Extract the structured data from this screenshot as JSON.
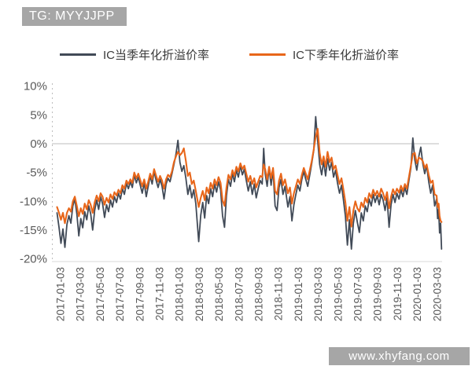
{
  "watermarks": {
    "top_left": "TG: MYYJJPP",
    "bottom_right": "www.xhyfang.com",
    "badge_bg": "#a6a6a6",
    "badge_text_color": "#ffffff"
  },
  "chart_data": {
    "type": "line",
    "title": "",
    "xlabel": "",
    "ylabel": "",
    "grid": "horizontal zero-line only",
    "legend_position": "top",
    "ylim": [
      -20,
      10
    ],
    "y_ticks": [
      "10%",
      "5%",
      "0%",
      "-5%",
      "-10%",
      "-15%",
      "-20%"
    ],
    "y_tick_values": [
      10,
      5,
      0,
      -5,
      -10,
      -15,
      -20
    ],
    "x_tick_labels": [
      "2017-01-03",
      "2017-03-03",
      "2017-05-03",
      "2017-07-03",
      "2017-09-03",
      "2017-11-03",
      "2018-01-03",
      "2018-03-03",
      "2018-05-03",
      "2018-07-03",
      "2018-09-03",
      "2018-11-03",
      "2019-01-03",
      "2019-03-03",
      "2019-05-03",
      "2019-07-03",
      "2019-09-03",
      "2019-11-03",
      "2020-01-03",
      "2020-03-03"
    ],
    "x_tick_months": [
      0,
      2,
      4,
      6,
      8,
      10,
      12,
      14,
      16,
      18,
      20,
      22,
      24,
      26,
      28,
      30,
      32,
      34,
      36,
      38
    ],
    "x_unit": "months since 2017-01-03 (daily series shown)",
    "gridline_color": "#c9c9c9",
    "axis_color": "#bdbdbd",
    "tick_text_color": "#595959",
    "t": [
      -0.4,
      -0.2,
      0,
      0.2,
      0.4,
      0.6,
      0.8,
      1,
      1.2,
      1.4,
      1.6,
      1.8,
      2,
      2.2,
      2.4,
      2.6,
      2.8,
      3,
      3.2,
      3.4,
      3.6,
      3.8,
      4,
      4.2,
      4.4,
      4.6,
      4.8,
      5,
      5.2,
      5.4,
      5.6,
      5.8,
      6,
      6.2,
      6.4,
      6.6,
      6.8,
      7,
      7.2,
      7.4,
      7.6,
      7.8,
      8,
      8.2,
      8.4,
      8.6,
      8.8,
      9,
      9.2,
      9.4,
      9.6,
      9.8,
      10,
      10.2,
      10.4,
      10.6,
      10.8,
      11,
      11.2,
      11.4,
      11.6,
      11.8,
      12,
      12.2,
      12.4,
      12.6,
      12.8,
      13,
      13.2,
      13.4,
      13.6,
      13.9,
      14.1,
      14.3,
      14.5,
      14.7,
      14.9,
      15.1,
      15.3,
      15.5,
      15.7,
      15.9,
      16.1,
      16.3,
      16.5,
      16.7,
      16.9,
      17.1,
      17.3,
      17.5,
      17.7,
      17.9,
      18.1,
      18.3,
      18.5,
      18.7,
      18.9,
      19.1,
      19.3,
      19.5,
      19.7,
      19.9,
      20.1,
      20.3,
      20.45,
      20.6,
      20.8,
      21,
      21.2,
      21.4,
      21.6,
      21.8,
      22,
      22.2,
      22.4,
      22.6,
      22.9,
      23.1,
      23.3,
      23.5,
      23.7,
      23.9,
      24.1,
      24.3,
      24.5,
      24.7,
      24.9,
      25.1,
      25.3,
      25.5,
      25.7,
      25.9,
      26.1,
      26.3,
      26.5,
      26.7,
      26.9,
      27.1,
      27.3,
      27.5,
      27.7,
      27.9,
      28.1,
      28.3,
      28.5,
      28.7,
      28.9,
      29.1,
      29.3,
      29.5,
      29.7,
      29.9,
      30.1,
      30.3,
      30.5,
      30.7,
      30.9,
      31.1,
      31.3,
      31.5,
      31.7,
      31.9,
      32.1,
      32.3,
      32.5,
      32.7,
      32.9,
      33.1,
      33.3,
      33.5,
      33.7,
      33.9,
      34.1,
      34.3,
      34.5,
      34.7,
      34.9,
      35.1,
      35.3,
      35.5,
      35.7,
      35.9,
      36.1,
      36.3,
      36.5,
      36.7,
      36.9,
      37.1,
      37.3,
      37.5,
      37.7,
      37.9,
      38,
      38.1,
      38.2,
      38.3,
      38.4
    ],
    "series": [
      {
        "name": "IC当季年化折溢价率",
        "color": "#414a57",
        "values": [
          -12,
          -14.5,
          -17.3,
          -14.8,
          -18,
          -14,
          -12.5,
          -13.8,
          -10.8,
          -9.6,
          -12.2,
          -16,
          -13,
          -14.6,
          -11.8,
          -13.2,
          -10.8,
          -12.2,
          -15,
          -11.6,
          -9.8,
          -11.4,
          -9.2,
          -10.4,
          -12.8,
          -10.6,
          -11.8,
          -9.8,
          -11,
          -9.2,
          -10.2,
          -8.6,
          -9.6,
          -7.8,
          -8.8,
          -6.9,
          -7.8,
          -6.6,
          -7.6,
          -5.4,
          -6.8,
          -5.8,
          -7.2,
          -8.6,
          -6.8,
          -9.2,
          -7.4,
          -5.6,
          -7,
          -4.8,
          -6.4,
          -7.6,
          -6.2,
          -7.4,
          -9.6,
          -7,
          -6,
          -6.6,
          -5.2,
          -3.6,
          -1.8,
          0.6,
          -3.2,
          -4.8,
          -3.8,
          -6,
          -8.8,
          -7.2,
          -9.4,
          -8,
          -10.4,
          -17,
          -12.4,
          -10.2,
          -12.9,
          -9,
          -10.4,
          -7.8,
          -9.2,
          -7,
          -8.4,
          -6.6,
          -8,
          -12.5,
          -14.5,
          -9,
          -6.2,
          -7.4,
          -5.2,
          -6.6,
          -4.6,
          -5.8,
          -3.8,
          -5.4,
          -4.4,
          -6.4,
          -8.2,
          -6.6,
          -8.8,
          -7,
          -9.4,
          -7.8,
          -6.4,
          -7,
          -0.8,
          -5.2,
          -7.4,
          -4.2,
          -7.2,
          -4.6,
          -10.8,
          -11.6,
          -7.6,
          -6.2,
          -8.8,
          -7.4,
          -11,
          -9.2,
          -13.4,
          -10.6,
          -8.8,
          -7.2,
          -8.2,
          -6.2,
          -4.8,
          -6.2,
          -7.4,
          -5.4,
          -3.4,
          -1.2,
          4.7,
          0.6,
          -3.6,
          -5.4,
          -3,
          -5.6,
          -2.6,
          -4.6,
          -3.2,
          -5.8,
          -4.6,
          -6.8,
          -8.6,
          -7.2,
          -9.8,
          -12.6,
          -17.6,
          -13.2,
          -18.3,
          -13.8,
          -11.6,
          -13.6,
          -15.4,
          -12,
          -13.4,
          -10.8,
          -11.8,
          -9.6,
          -10.8,
          -8.8,
          -10.2,
          -9,
          -10.6,
          -8.8,
          -9.8,
          -11.6,
          -9.4,
          -14.5,
          -10.6,
          -8.8,
          -10.2,
          -8.6,
          -9.6,
          -8,
          -9.2,
          -7.6,
          -8.8,
          -6.4,
          -4.2,
          1,
          -2.8,
          -4.6,
          -2.2,
          -0.6,
          -3.4,
          -5.2,
          -3.8,
          -6.6,
          -8.6,
          -7.2,
          -10.8,
          -9.6,
          -13,
          -11.4,
          -15.5,
          -13.8,
          -18.3
        ]
      },
      {
        "name": "IC下季年化折溢价率",
        "color": "#e8661a",
        "values": [
          -11,
          -12,
          -13.2,
          -12,
          -13.8,
          -12,
          -11.2,
          -11.8,
          -10,
          -9.2,
          -10.8,
          -12.6,
          -11.2,
          -12.2,
          -10.4,
          -11.4,
          -9.8,
          -10.6,
          -12,
          -10.2,
          -9,
          -10,
          -8.6,
          -9.2,
          -10.6,
          -9.4,
          -10.2,
          -8.8,
          -9.6,
          -8.4,
          -9,
          -8,
          -8.6,
          -7.2,
          -7.8,
          -6.4,
          -7,
          -6.2,
          -6.8,
          -5,
          -6,
          -5.2,
          -6.3,
          -7.4,
          -6.2,
          -7.8,
          -6.6,
          -5.2,
          -6.2,
          -4.4,
          -5.6,
          -6.6,
          -5.6,
          -6.4,
          -7.8,
          -6.2,
          -5.4,
          -5.8,
          -4.8,
          -3.2,
          -2.2,
          -1.4,
          -2,
          -1.6,
          -0.8,
          -3,
          -5.6,
          -5,
          -7,
          -6.4,
          -8.2,
          -11,
          -9.4,
          -8.2,
          -9.8,
          -7.6,
          -8.6,
          -6.8,
          -7.8,
          -6.2,
          -7.2,
          -5.8,
          -6.8,
          -9.8,
          -10.8,
          -7.6,
          -5.4,
          -6.2,
          -4.6,
          -5.6,
          -4,
          -4.8,
          -3.4,
          -4.4,
          -3.8,
          -5.2,
          -6.6,
          -5.6,
          -7,
          -6,
          -7.6,
          -6.6,
          -5.6,
          -5.8,
          -3.6,
          -4.4,
          -6.2,
          -4,
          -6,
          -4.2,
          -8.2,
          -8.8,
          -6.4,
          -5.2,
          -7.2,
          -6.2,
          -8.6,
          -7.6,
          -10.4,
          -8.6,
          -7.4,
          -6.2,
          -7,
          -5.4,
          -4.2,
          -5.2,
          -6.2,
          -4.6,
          -3,
          -1,
          1.2,
          2.6,
          -1.6,
          -3.6,
          -2.2,
          -4,
          -1.4,
          -3.2,
          -2.4,
          -4.4,
          -3.8,
          -5.4,
          -7,
          -6,
          -8,
          -10.2,
          -13.4,
          -11,
          -14.4,
          -11.6,
          -10,
          -11.2,
          -11.8,
          -10.2,
          -11,
          -9.4,
          -10.2,
          -8.6,
          -9.4,
          -8,
          -9,
          -8.2,
          -9.2,
          -7.8,
          -8.6,
          -9.8,
          -8.4,
          -11.2,
          -9.2,
          -7.9,
          -8.8,
          -7.8,
          -8.5,
          -7.3,
          -8.2,
          -7,
          -7.8,
          -5.8,
          -3.8,
          -1.8,
          -1.6,
          -3.4,
          -2.4,
          -2.6,
          -3,
          -4.2,
          -3.6,
          -5.4,
          -6.8,
          -6.4,
          -8.8,
          -9,
          -11,
          -10.4,
          -12.6,
          -13.4,
          -13.6
        ]
      }
    ]
  }
}
